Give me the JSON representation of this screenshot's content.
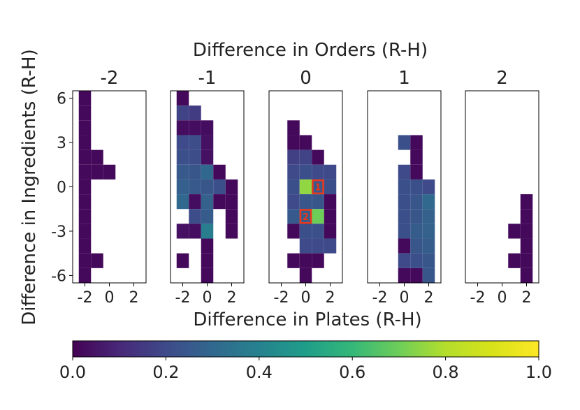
{
  "chart_data": {
    "type": "heatmap",
    "suptitle": "Difference in Orders (R-H)",
    "xlabel": "Difference in Plates (R-H)",
    "ylabel": "Difference in Ingredients (R-H)",
    "x_range": [
      -3,
      3
    ],
    "y_range": [
      -6.5,
      6.5
    ],
    "x_ticks": [
      -2,
      0,
      2
    ],
    "x_tick_labels": [
      "-2",
      "0",
      "2"
    ],
    "y_ticks": [
      6,
      3,
      0,
      -3,
      -6
    ],
    "y_tick_labels": [
      "6",
      "3",
      "0",
      "-3",
      "-6"
    ],
    "x_cells": [
      -2,
      -1,
      0,
      1,
      2
    ],
    "colorbar": {
      "range": [
        0,
        1
      ],
      "ticks": [
        0,
        0.2,
        0.4,
        0.6,
        0.8,
        1
      ],
      "tick_labels": [
        "0.0",
        "0.2",
        "0.4",
        "0.6",
        "0.8",
        "1.0"
      ],
      "colormap": "viridis"
    },
    "highlight_color": "#e8381e",
    "panels": [
      {
        "title": "-2",
        "cells": [
          [
            -2,
            6,
            0.02
          ],
          [
            -2,
            5,
            0.02
          ],
          [
            -2,
            4,
            0.02
          ],
          [
            -2,
            3,
            0.02
          ],
          [
            -2,
            2,
            0.02
          ],
          [
            -1,
            2,
            0.02
          ],
          [
            -2,
            1,
            0.02
          ],
          [
            -1,
            1,
            0.02
          ],
          [
            0,
            1,
            0.02
          ],
          [
            -2,
            0,
            0.02
          ],
          [
            -2,
            -1,
            0.02
          ],
          [
            -2,
            -2,
            0.02
          ],
          [
            -2,
            -3,
            0.02
          ],
          [
            -2,
            -4,
            0.02
          ],
          [
            -2,
            -5,
            0.02
          ],
          [
            -1,
            -5,
            0.02
          ],
          [
            -2,
            -6,
            0.02
          ]
        ]
      },
      {
        "title": "-1",
        "cells": [
          [
            -2,
            6,
            0.02
          ],
          [
            -2,
            5,
            0.18
          ],
          [
            -1,
            5,
            0.16
          ],
          [
            -2,
            4,
            0.03
          ],
          [
            -1,
            4,
            0.03
          ],
          [
            0,
            4,
            0.03
          ],
          [
            -2,
            3,
            0.2
          ],
          [
            -1,
            3,
            0.21
          ],
          [
            0,
            3,
            0.04
          ],
          [
            -2,
            2,
            0.22
          ],
          [
            -1,
            2,
            0.21
          ],
          [
            0,
            2,
            0.04
          ],
          [
            -2,
            1,
            0.25
          ],
          [
            -1,
            1,
            0.24
          ],
          [
            0,
            1,
            0.3
          ],
          [
            1,
            1,
            0.02
          ],
          [
            -2,
            0,
            0.27
          ],
          [
            -1,
            0,
            0.25
          ],
          [
            0,
            0,
            0.24
          ],
          [
            1,
            0,
            0.22
          ],
          [
            2,
            0,
            0.02
          ],
          [
            -2,
            -1,
            0.3
          ],
          [
            -1,
            -1,
            0.03
          ],
          [
            0,
            -1,
            0.28
          ],
          [
            1,
            -1,
            0.02
          ],
          [
            2,
            -1,
            0.02
          ],
          [
            -1,
            -2,
            0.21
          ],
          [
            0,
            -2,
            0.26
          ],
          [
            2,
            -2,
            0.02
          ],
          [
            -2,
            -3,
            0.04
          ],
          [
            -1,
            -3,
            0.03
          ],
          [
            0,
            -3,
            0.38
          ],
          [
            2,
            -3,
            0.02
          ],
          [
            0,
            -4,
            0.02
          ],
          [
            -2,
            -5,
            0.02
          ],
          [
            0,
            -5,
            0.02
          ],
          [
            0,
            -6,
            0.02
          ]
        ]
      },
      {
        "title": "0",
        "cells": [
          [
            -1,
            4,
            0.02
          ],
          [
            -1,
            3,
            0.02
          ],
          [
            0,
            3,
            0.02
          ],
          [
            -1,
            2,
            0.17
          ],
          [
            0,
            2,
            0.18
          ],
          [
            1,
            2,
            0.02
          ],
          [
            -1,
            1,
            0.2
          ],
          [
            0,
            1,
            0.22
          ],
          [
            1,
            1,
            0.2
          ],
          [
            2,
            1,
            0.2
          ],
          [
            -1,
            0,
            0.22
          ],
          [
            0,
            0,
            0.75
          ],
          [
            1,
            0,
            0.25
          ],
          [
            2,
            0,
            0.22
          ],
          [
            -1,
            -1,
            0.2
          ],
          [
            0,
            -1,
            0.24
          ],
          [
            1,
            -1,
            0.24
          ],
          [
            2,
            -1,
            0.02
          ],
          [
            -1,
            -2,
            0.25
          ],
          [
            0,
            -2,
            0.26
          ],
          [
            1,
            -2,
            0.7
          ],
          [
            2,
            -2,
            0.02
          ],
          [
            -1,
            -3,
            0.02
          ],
          [
            0,
            -3,
            0.22
          ],
          [
            1,
            -3,
            0.22
          ],
          [
            2,
            -3,
            0.02
          ],
          [
            0,
            -4,
            0.2
          ],
          [
            1,
            -4,
            0.2
          ],
          [
            2,
            -4,
            0.2
          ],
          [
            -1,
            -5,
            0.02
          ],
          [
            0,
            -5,
            0.02
          ],
          [
            1,
            -5,
            0.02
          ],
          [
            0,
            -6,
            0.02
          ]
        ],
        "highlights": [
          {
            "x": 1,
            "y": 0,
            "label": "1"
          },
          {
            "x": 0,
            "y": -2,
            "label": "2"
          }
        ]
      },
      {
        "title": "1",
        "cells": [
          [
            0,
            3,
            0.22
          ],
          [
            1,
            3,
            0.02
          ],
          [
            1,
            2,
            0.02
          ],
          [
            0,
            1,
            0.2
          ],
          [
            1,
            1,
            0.02
          ],
          [
            0,
            0,
            0.22
          ],
          [
            1,
            0,
            0.22
          ],
          [
            2,
            0,
            0.2
          ],
          [
            0,
            -1,
            0.22
          ],
          [
            1,
            -1,
            0.24
          ],
          [
            2,
            -1,
            0.3
          ],
          [
            0,
            -2,
            0.22
          ],
          [
            1,
            -2,
            0.24
          ],
          [
            2,
            -2,
            0.28
          ],
          [
            0,
            -3,
            0.22
          ],
          [
            1,
            -3,
            0.26
          ],
          [
            2,
            -3,
            0.28
          ],
          [
            0,
            -4,
            0.02
          ],
          [
            1,
            -4,
            0.24
          ],
          [
            2,
            -4,
            0.26
          ],
          [
            0,
            -5,
            0.2
          ],
          [
            1,
            -5,
            0.22
          ],
          [
            2,
            -5,
            0.24
          ],
          [
            0,
            -6,
            0.02
          ],
          [
            1,
            -6,
            0.02
          ],
          [
            2,
            -6,
            0.24
          ]
        ]
      },
      {
        "title": "2",
        "cells": [
          [
            2,
            -1,
            0.02
          ],
          [
            2,
            -2,
            0.02
          ],
          [
            2,
            -3,
            0.02
          ],
          [
            1,
            -3,
            0.02
          ],
          [
            2,
            -4,
            0.02
          ],
          [
            2,
            -5,
            0.02
          ],
          [
            1,
            -5,
            0.02
          ],
          [
            2,
            -6,
            0.02
          ]
        ]
      }
    ]
  }
}
